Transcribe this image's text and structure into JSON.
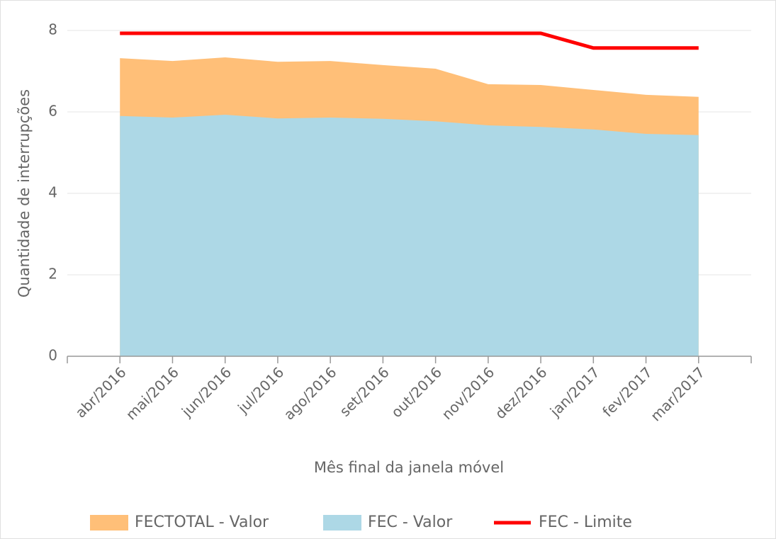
{
  "chart_data": {
    "type": "area",
    "x_label": "Mês final da janela móvel",
    "y_label": "Quantidade de interrupções",
    "categories": [
      "abr/2016",
      "mai/2016",
      "jun/2016",
      "jul/2016",
      "ago/2016",
      "set/2016",
      "out/2016",
      "nov/2016",
      "dez/2016",
      "jan/2017",
      "fev/2017",
      "mar/2017"
    ],
    "series": [
      {
        "name": "FECTOTAL - Valor",
        "type": "area",
        "color": "#ffbf78",
        "values": [
          7.32,
          7.25,
          7.34,
          7.23,
          7.25,
          7.15,
          7.06,
          6.68,
          6.66,
          6.54,
          6.42,
          6.37
        ]
      },
      {
        "name": "FEC - Valor",
        "type": "area",
        "color": "#add8e6",
        "values": [
          5.9,
          5.86,
          5.93,
          5.84,
          5.86,
          5.83,
          5.77,
          5.67,
          5.63,
          5.57,
          5.46,
          5.43
        ]
      },
      {
        "name": "FEC - Limite",
        "type": "line",
        "color": "#ff0000",
        "values": [
          7.93,
          7.93,
          7.93,
          7.93,
          7.93,
          7.93,
          7.93,
          7.93,
          7.93,
          7.57,
          7.57,
          7.57
        ]
      }
    ],
    "ylim": [
      0,
      8
    ],
    "yticks": [
      0,
      2,
      4,
      6,
      8
    ],
    "grid": true,
    "legend": "bottom"
  }
}
